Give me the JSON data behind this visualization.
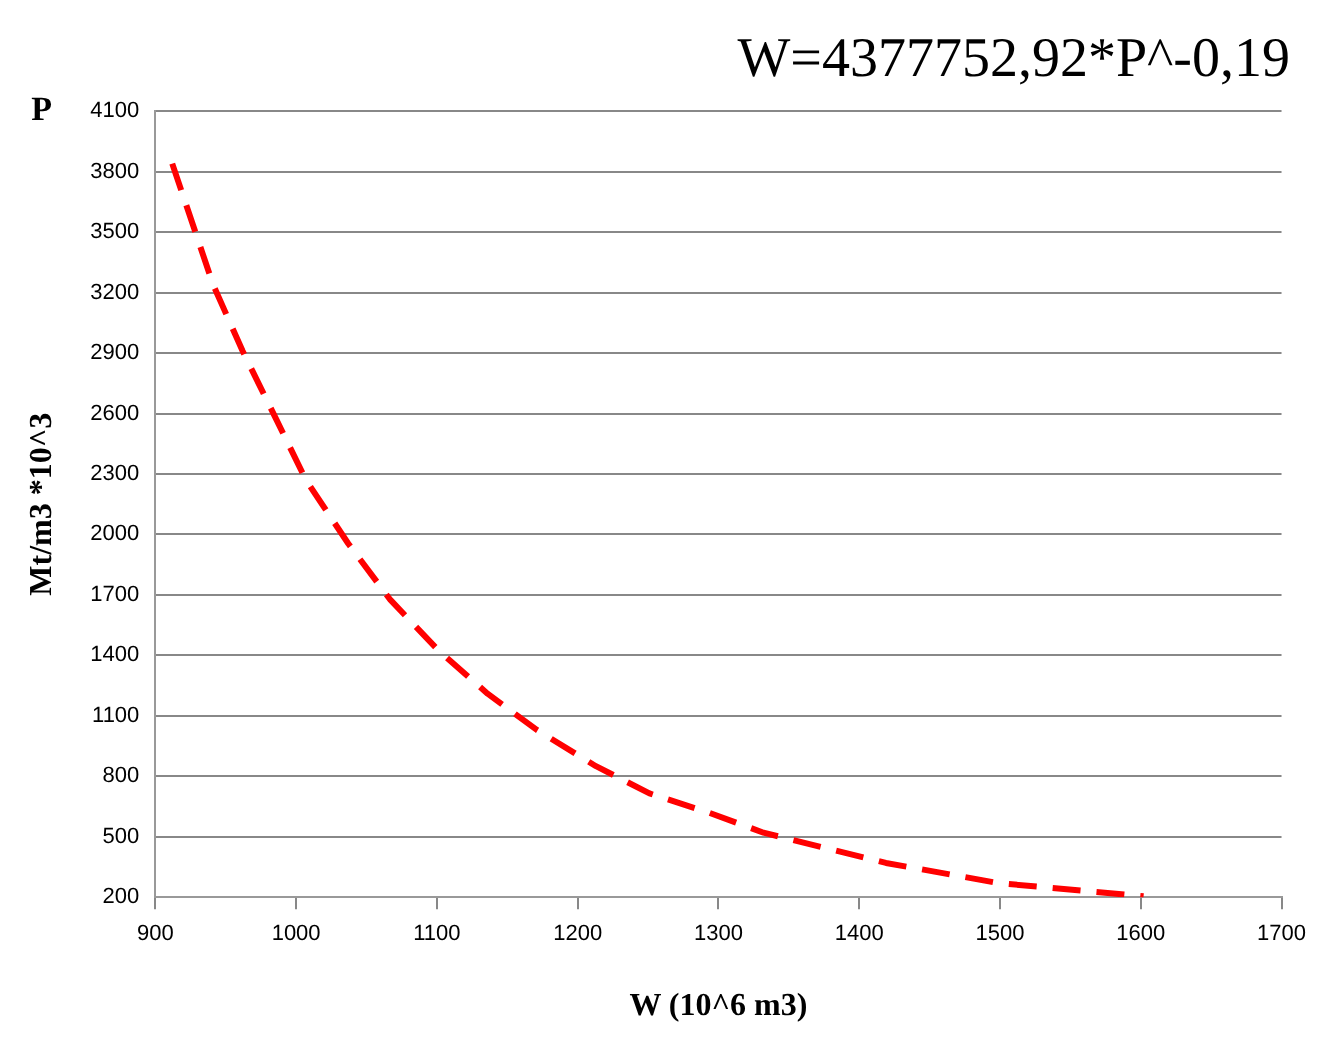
{
  "chart_data": {
    "type": "line",
    "title": "W=4377752,92*P^-0,19",
    "xlabel": "W (10^6 m3)",
    "ylabel": "Mt/m3 *10^3",
    "annotations": [
      "P"
    ],
    "series": [
      {
        "color": "#ff0000",
        "x": [
          912,
          941,
          962,
          986,
          1007,
          1037,
          1067,
          1101,
          1136,
          1171,
          1213,
          1251,
          1293,
          1332,
          1419,
          1499,
          1602
        ],
        "values": [
          3840,
          3240,
          2910,
          2570,
          2270,
          1955,
          1675,
          1425,
          1210,
          1030,
          850,
          715,
          620,
          520,
          370,
          270,
          205
        ]
      }
    ],
    "xlim": [
      900,
      1700
    ],
    "xticks": [
      900,
      1000,
      1100,
      1200,
      1300,
      1400,
      1500,
      1600,
      1700
    ],
    "ylim": [
      200,
      4100
    ],
    "yticks": [
      200,
      500,
      800,
      1100,
      1400,
      1700,
      2000,
      2300,
      2600,
      2900,
      3200,
      3500,
      3800,
      4100
    ],
    "grid": "y",
    "legend": false,
    "marker": "none",
    "line_style": "dashed"
  }
}
